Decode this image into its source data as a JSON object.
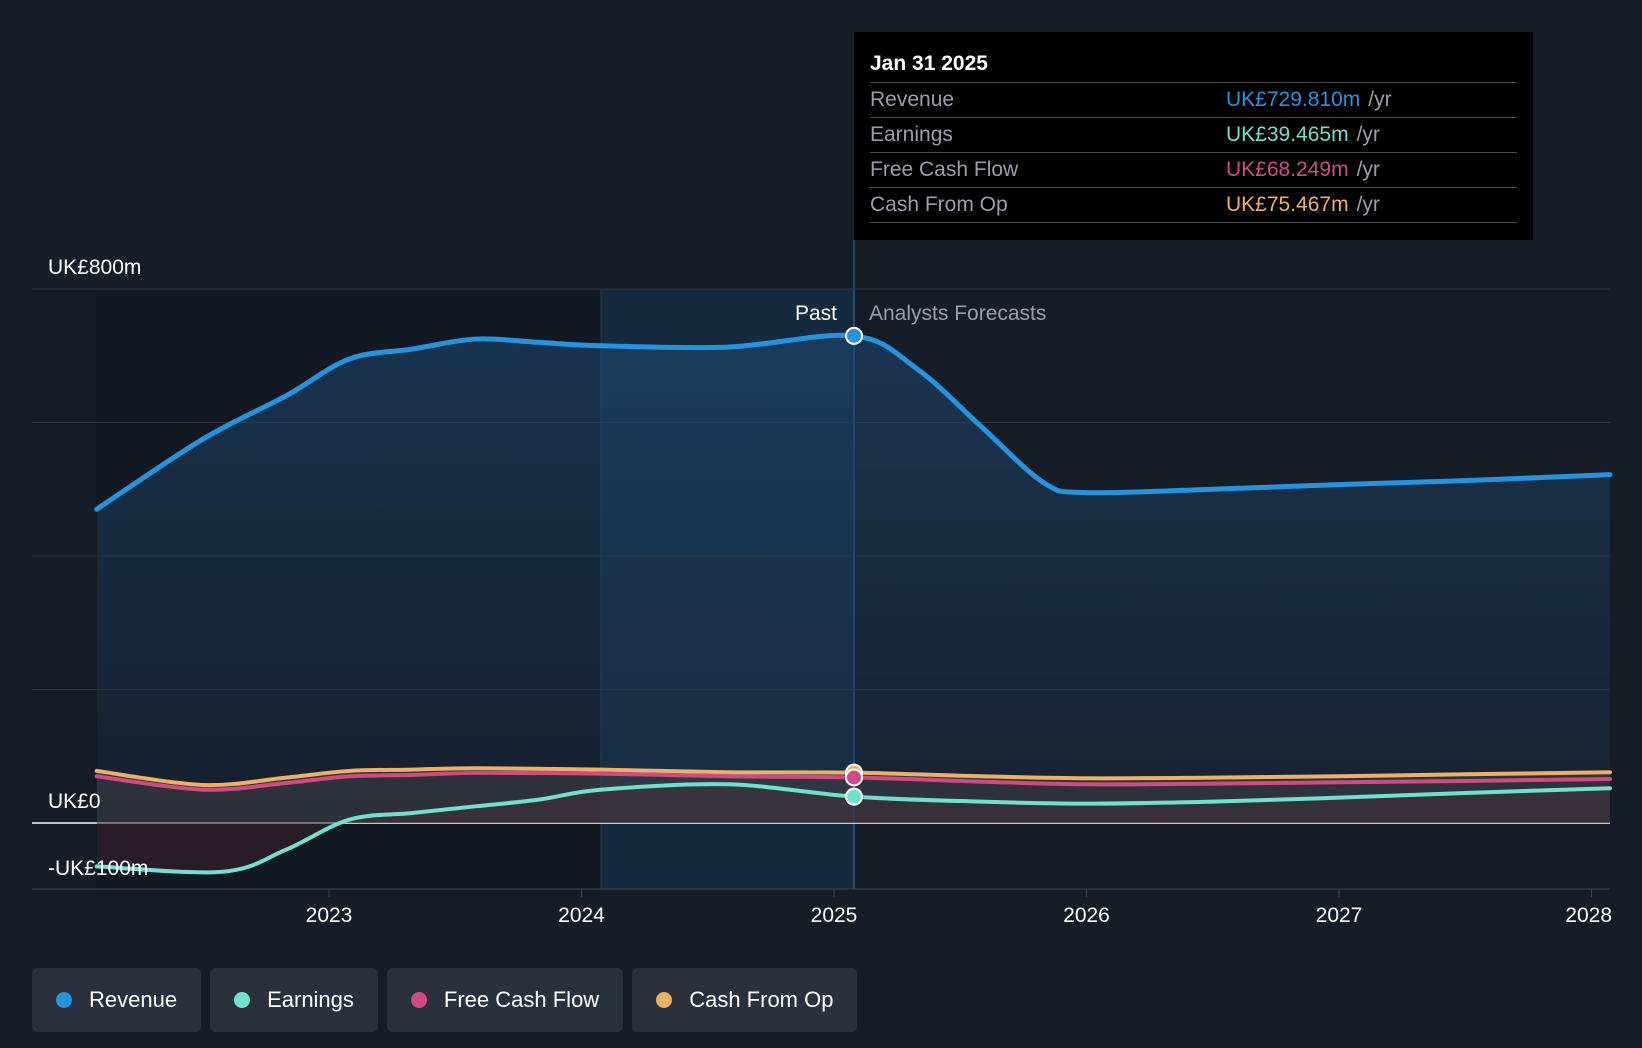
{
  "chart_data": {
    "type": "line",
    "y_tick_labels": [
      "UK£800m",
      "UK£0",
      "-UK£100m"
    ],
    "ylim": [
      -100,
      800
    ],
    "x_tick_labels": [
      "2023",
      "2024",
      "2025",
      "2026",
      "2027",
      "2028"
    ],
    "region_labels": {
      "past": "Past",
      "forecast": "Analysts Forecasts"
    },
    "grid": true,
    "series": [
      {
        "name": "Revenue",
        "color": "#2394df",
        "points": [
          [
            2022.08,
            470
          ],
          [
            2022.5,
            575
          ],
          [
            2022.83,
            640
          ],
          [
            2023.08,
            695
          ],
          [
            2023.33,
            710
          ],
          [
            2023.58,
            725
          ],
          [
            2023.83,
            720
          ],
          [
            2024.08,
            715
          ],
          [
            2024.58,
            713
          ],
          [
            2025.08,
            729.81
          ],
          [
            2025.33,
            680
          ],
          [
            2025.58,
            595
          ],
          [
            2025.83,
            510
          ],
          [
            2026.0,
            495
          ],
          [
            2026.5,
            500
          ],
          [
            2027.0,
            507
          ],
          [
            2027.5,
            513
          ],
          [
            2028.08,
            522
          ]
        ]
      },
      {
        "name": "Earnings",
        "color": "#6fe2cd",
        "points": [
          [
            2022.08,
            -65
          ],
          [
            2022.58,
            -73
          ],
          [
            2022.83,
            -40
          ],
          [
            2023.08,
            5
          ],
          [
            2023.33,
            15
          ],
          [
            2023.58,
            25
          ],
          [
            2023.83,
            35
          ],
          [
            2024.08,
            50
          ],
          [
            2024.58,
            58
          ],
          [
            2025.08,
            39.465
          ],
          [
            2025.58,
            32
          ],
          [
            2026.0,
            29
          ],
          [
            2026.5,
            32
          ],
          [
            2027.0,
            38
          ],
          [
            2027.5,
            45
          ],
          [
            2028.08,
            52
          ]
        ]
      },
      {
        "name": "Free Cash Flow",
        "color": "#d04b86",
        "points": [
          [
            2022.08,
            70
          ],
          [
            2022.5,
            50
          ],
          [
            2022.83,
            60
          ],
          [
            2023.08,
            70
          ],
          [
            2023.33,
            72
          ],
          [
            2023.58,
            75
          ],
          [
            2024.08,
            74
          ],
          [
            2024.58,
            70
          ],
          [
            2025.08,
            68.249
          ],
          [
            2025.58,
            62
          ],
          [
            2026.0,
            58
          ],
          [
            2026.5,
            59
          ],
          [
            2027.0,
            61
          ],
          [
            2027.5,
            63
          ],
          [
            2028.08,
            66
          ]
        ]
      },
      {
        "name": "Cash From Op",
        "color": "#eeb063",
        "points": [
          [
            2022.08,
            78
          ],
          [
            2022.5,
            57
          ],
          [
            2022.83,
            68
          ],
          [
            2023.08,
            78
          ],
          [
            2023.33,
            80
          ],
          [
            2023.58,
            82
          ],
          [
            2024.08,
            80
          ],
          [
            2024.58,
            76
          ],
          [
            2025.08,
            75.467
          ],
          [
            2025.58,
            70
          ],
          [
            2026.0,
            67
          ],
          [
            2026.5,
            68
          ],
          [
            2027.0,
            70
          ],
          [
            2027.5,
            73
          ],
          [
            2028.08,
            76
          ]
        ]
      }
    ]
  },
  "tooltip": {
    "date": "Jan 31 2025",
    "rows": [
      {
        "label": "Revenue",
        "value": "UK£729.810m",
        "unit": "/yr",
        "color": "#2394df"
      },
      {
        "label": "Earnings",
        "value": "UK£39.465m",
        "unit": "/yr",
        "color": "#6fe2cd"
      },
      {
        "label": "Free Cash Flow",
        "value": "UK£68.249m",
        "unit": "/yr",
        "color": "#d04b86"
      },
      {
        "label": "Cash From Op",
        "value": "UK£75.467m",
        "unit": "/yr",
        "color": "#eeb063"
      }
    ]
  },
  "legend": [
    {
      "label": "Revenue",
      "color": "#2394df"
    },
    {
      "label": "Earnings",
      "color": "#6fe2cd"
    },
    {
      "label": "Free Cash Flow",
      "color": "#d04b86"
    },
    {
      "label": "Cash From Op",
      "color": "#eeb063"
    }
  ]
}
